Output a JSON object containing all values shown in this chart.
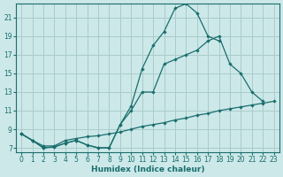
{
  "xlabel": "Humidex (Indice chaleur)",
  "bg_color": "#cce8e8",
  "grid_color": "#aacccc",
  "line_color": "#1a6e6e",
  "xlim": [
    -0.5,
    23.5
  ],
  "ylim": [
    6.5,
    22.5
  ],
  "yticks": [
    7,
    9,
    11,
    13,
    15,
    17,
    19,
    21
  ],
  "xticks": [
    0,
    1,
    2,
    3,
    4,
    5,
    6,
    7,
    8,
    9,
    10,
    11,
    12,
    13,
    14,
    15,
    16,
    17,
    18,
    19,
    20,
    21,
    22,
    23
  ],
  "curve1_x": [
    0,
    1,
    2,
    3,
    4,
    5,
    6,
    7,
    8,
    9,
    10,
    11,
    12,
    13,
    14,
    15,
    16,
    17,
    18
  ],
  "curve1_y": [
    8.5,
    7.8,
    7.0,
    7.1,
    7.5,
    7.8,
    7.3,
    7.0,
    7.0,
    9.5,
    11.5,
    15.5,
    18.0,
    19.5,
    22.0,
    22.5,
    21.5,
    19.0,
    18.5
  ],
  "curve2_x": [
    0,
    1,
    2,
    3,
    4,
    5,
    6,
    7,
    8,
    9,
    10,
    11,
    12,
    13,
    14,
    15,
    16,
    17,
    18,
    19,
    20,
    21,
    22
  ],
  "curve2_y": [
    8.5,
    7.8,
    7.0,
    7.1,
    7.5,
    7.8,
    7.3,
    7.0,
    7.0,
    9.5,
    11.0,
    13.0,
    13.0,
    16.0,
    16.5,
    17.0,
    17.5,
    18.5,
    19.0,
    16.0,
    15.0,
    13.0,
    12.0
  ],
  "curve3_x": [
    0,
    1,
    2,
    3,
    4,
    5,
    6,
    7,
    8,
    9,
    10,
    11,
    12,
    13,
    14,
    15,
    16,
    17,
    18,
    19,
    20,
    21,
    22,
    23
  ],
  "curve3_y": [
    8.5,
    7.8,
    7.2,
    7.2,
    7.8,
    8.0,
    8.2,
    8.3,
    8.5,
    8.7,
    9.0,
    9.3,
    9.5,
    9.7,
    10.0,
    10.2,
    10.5,
    10.7,
    11.0,
    11.2,
    11.4,
    11.6,
    11.8,
    12.0
  ]
}
